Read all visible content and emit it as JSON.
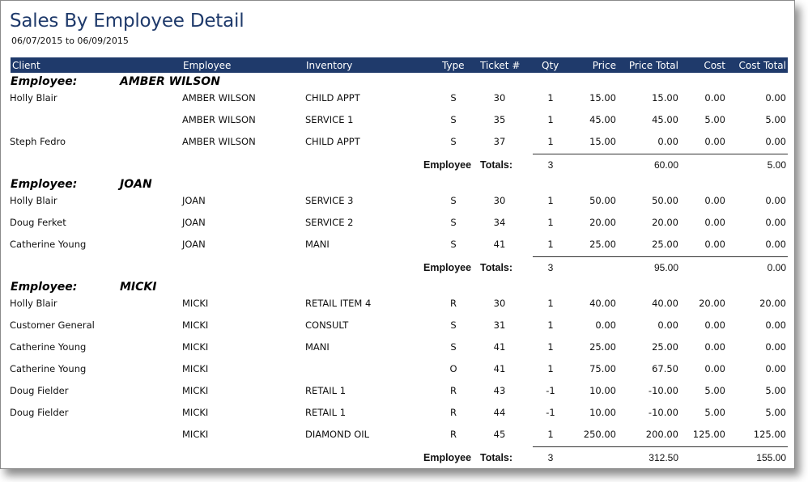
{
  "report": {
    "title": "Sales By Employee Detail",
    "date_range": "06/07/2015 to 06/09/2015"
  },
  "columns": {
    "client": "Client",
    "employee": "Employee",
    "inventory": "Inventory",
    "type": "Type",
    "ticket": "Ticket #",
    "qty": "Qty",
    "price": "Price",
    "price_total": "Price Total",
    "cost": "Cost",
    "cost_total": "Cost Total"
  },
  "labels": {
    "employee_group": "Employee:",
    "totals_word1": "Employee",
    "totals_word2": "Totals:"
  },
  "groups": [
    {
      "employee": "AMBER WILSON",
      "rows": [
        {
          "client": "Holly Blair",
          "employee": "AMBER WILSON",
          "inventory": "CHILD APPT",
          "type": "S",
          "ticket": "30",
          "qty": "1",
          "price": "15.00",
          "price_total": "15.00",
          "cost": "0.00",
          "cost_total": "0.00"
        },
        {
          "client": "",
          "employee": "AMBER WILSON",
          "inventory": "SERVICE 1",
          "type": "S",
          "ticket": "35",
          "qty": "1",
          "price": "45.00",
          "price_total": "45.00",
          "cost": "5.00",
          "cost_total": "5.00"
        },
        {
          "client": "Steph Fedro",
          "employee": "AMBER WILSON",
          "inventory": "CHILD APPT",
          "type": "S",
          "ticket": "37",
          "qty": "1",
          "price": "15.00",
          "price_total": "0.00",
          "cost": "0.00",
          "cost_total": "0.00"
        }
      ],
      "totals": {
        "qty": "3",
        "price_total": "60.00",
        "cost_total": "5.00"
      }
    },
    {
      "employee": "JOAN",
      "rows": [
        {
          "client": "Holly Blair",
          "employee": "JOAN",
          "inventory": "SERVICE 3",
          "type": "S",
          "ticket": "30",
          "qty": "1",
          "price": "50.00",
          "price_total": "50.00",
          "cost": "0.00",
          "cost_total": "0.00"
        },
        {
          "client": "Doug Ferket",
          "employee": "JOAN",
          "inventory": "SERVICE 2",
          "type": "S",
          "ticket": "34",
          "qty": "1",
          "price": "20.00",
          "price_total": "20.00",
          "cost": "0.00",
          "cost_total": "0.00"
        },
        {
          "client": "Catherine Young",
          "employee": "JOAN",
          "inventory": "MANI",
          "type": "S",
          "ticket": "41",
          "qty": "1",
          "price": "25.00",
          "price_total": "25.00",
          "cost": "0.00",
          "cost_total": "0.00"
        }
      ],
      "totals": {
        "qty": "3",
        "price_total": "95.00",
        "cost_total": "0.00"
      }
    },
    {
      "employee": "MICKI",
      "rows": [
        {
          "client": "Holly Blair",
          "employee": "MICKI",
          "inventory": "RETAIL ITEM 4",
          "type": "R",
          "ticket": "30",
          "qty": "1",
          "price": "40.00",
          "price_total": "40.00",
          "cost": "20.00",
          "cost_total": "20.00"
        },
        {
          "client": "Customer General",
          "employee": "MICKI",
          "inventory": "CONSULT",
          "type": "S",
          "ticket": "31",
          "qty": "1",
          "price": "0.00",
          "price_total": "0.00",
          "cost": "0.00",
          "cost_total": "0.00"
        },
        {
          "client": "Catherine Young",
          "employee": "MICKI",
          "inventory": "MANI",
          "type": "S",
          "ticket": "41",
          "qty": "1",
          "price": "25.00",
          "price_total": "25.00",
          "cost": "0.00",
          "cost_total": "0.00"
        },
        {
          "client": "Catherine Young",
          "employee": "MICKI",
          "inventory": "",
          "type": "O",
          "ticket": "41",
          "qty": "1",
          "price": "75.00",
          "price_total": "67.50",
          "cost": "0.00",
          "cost_total": "0.00"
        },
        {
          "client": "Doug Fielder",
          "employee": "MICKI",
          "inventory": "RETAIL 1",
          "type": "R",
          "ticket": "43",
          "qty": "-1",
          "price": "10.00",
          "price_total": "-10.00",
          "cost": "5.00",
          "cost_total": "5.00"
        },
        {
          "client": "Doug Fielder",
          "employee": "MICKI",
          "inventory": "RETAIL 1",
          "type": "R",
          "ticket": "44",
          "qty": "-1",
          "price": "10.00",
          "price_total": "-10.00",
          "cost": "5.00",
          "cost_total": "5.00"
        },
        {
          "client": "",
          "employee": "MICKI",
          "inventory": "DIAMOND OIL",
          "type": "R",
          "ticket": "45",
          "qty": "1",
          "price": "250.00",
          "price_total": "200.00",
          "cost": "125.00",
          "cost_total": "125.00"
        }
      ],
      "totals": {
        "qty": "3",
        "price_total": "312.50",
        "cost_total": "155.00"
      }
    }
  ],
  "colors": {
    "header_bg": "#1f3a6b",
    "title": "#1f3a6b"
  }
}
